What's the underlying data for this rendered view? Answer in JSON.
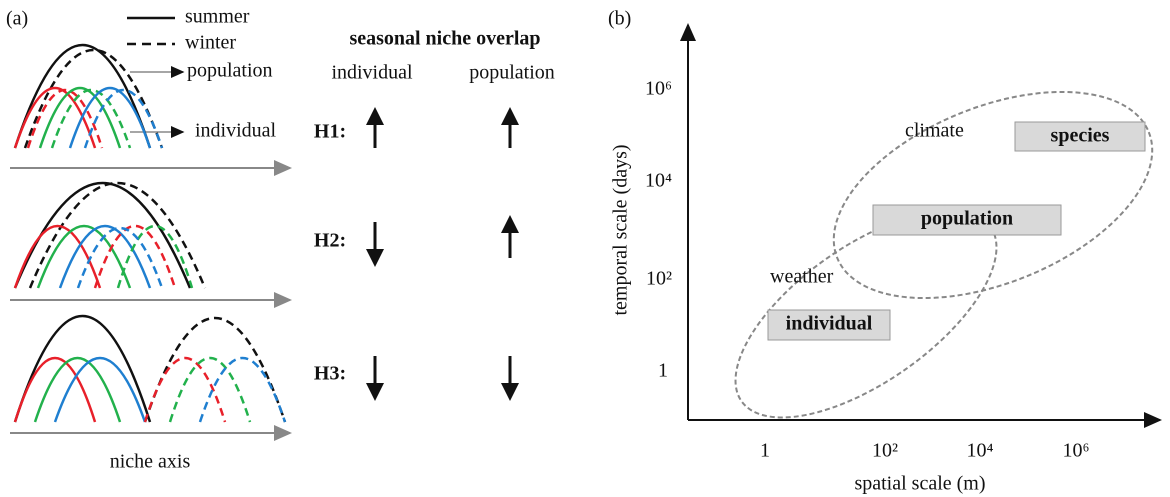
{
  "panel_a": {
    "label": "(a)",
    "legend": {
      "summer": "summer",
      "winter": "winter"
    },
    "callouts": {
      "population": "population",
      "individual": "individual"
    },
    "x_axis_label": "niche axis",
    "title": "seasonal niche overlap",
    "columns": [
      "individual",
      "population"
    ],
    "hypotheses": [
      "H1:",
      "H2:",
      "H3:"
    ]
  },
  "panel_b": {
    "label": "(b)",
    "x_axis_label": "spatial scale (m)",
    "y_axis_label": "temporal scale (days)",
    "x_ticks": [
      "1",
      "10²",
      "10⁴",
      "10⁶"
    ],
    "y_ticks": [
      "10⁶",
      "10⁴",
      "10²",
      "1"
    ],
    "regions": {
      "climate": "climate",
      "weather": "weather"
    },
    "boxes": {
      "species": "species",
      "population": "population",
      "individual": "individual"
    }
  }
}
